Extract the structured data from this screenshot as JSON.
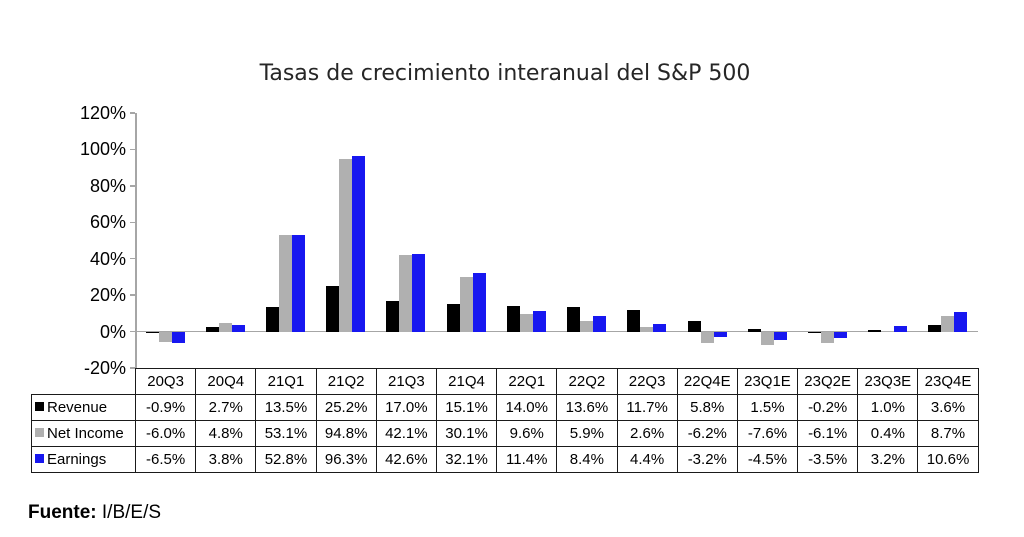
{
  "title": "Tasas de crecimiento interanual del S&P 500",
  "source": {
    "label": "Fuente:",
    "value": "I/B/E/S"
  },
  "chart_data": {
    "type": "bar",
    "title": "Tasas de crecimiento interanual del S&P 500",
    "categories": [
      "20Q3",
      "20Q4",
      "21Q1",
      "21Q2",
      "21Q3",
      "21Q4",
      "22Q1",
      "22Q2",
      "22Q3",
      "22Q4E",
      "23Q1E",
      "23Q2E",
      "23Q3E",
      "23Q4E"
    ],
    "series": [
      {
        "name": "Revenue",
        "color": "#000000",
        "values": [
          -0.9,
          2.7,
          13.5,
          25.2,
          17.0,
          15.1,
          14.0,
          13.6,
          11.7,
          5.8,
          1.5,
          -0.2,
          1.0,
          3.6
        ]
      },
      {
        "name": "Net Income",
        "color": "#b0b0b0",
        "values": [
          -6.0,
          4.8,
          53.1,
          94.8,
          42.1,
          30.1,
          9.6,
          5.9,
          2.6,
          -6.2,
          -7.6,
          -6.1,
          0.4,
          8.7
        ]
      },
      {
        "name": "Earnings",
        "color": "#1717f0",
        "values": [
          -6.5,
          3.8,
          52.8,
          96.3,
          42.6,
          32.1,
          11.4,
          8.4,
          4.4,
          -3.2,
          -4.5,
          -3.5,
          3.2,
          10.6
        ]
      }
    ],
    "xlabel": "",
    "ylabel": "",
    "ylim": [
      -20,
      120
    ],
    "ytick_step": 20,
    "ytick_labels": [
      "120%",
      "100%",
      "80%",
      "60%",
      "40%",
      "20%",
      "0%",
      "-20%"
    ],
    "value_format": "one_decimal_percent",
    "grid": false,
    "legend_position": "table-rows-left",
    "axis_color": "#a6a6a6"
  }
}
